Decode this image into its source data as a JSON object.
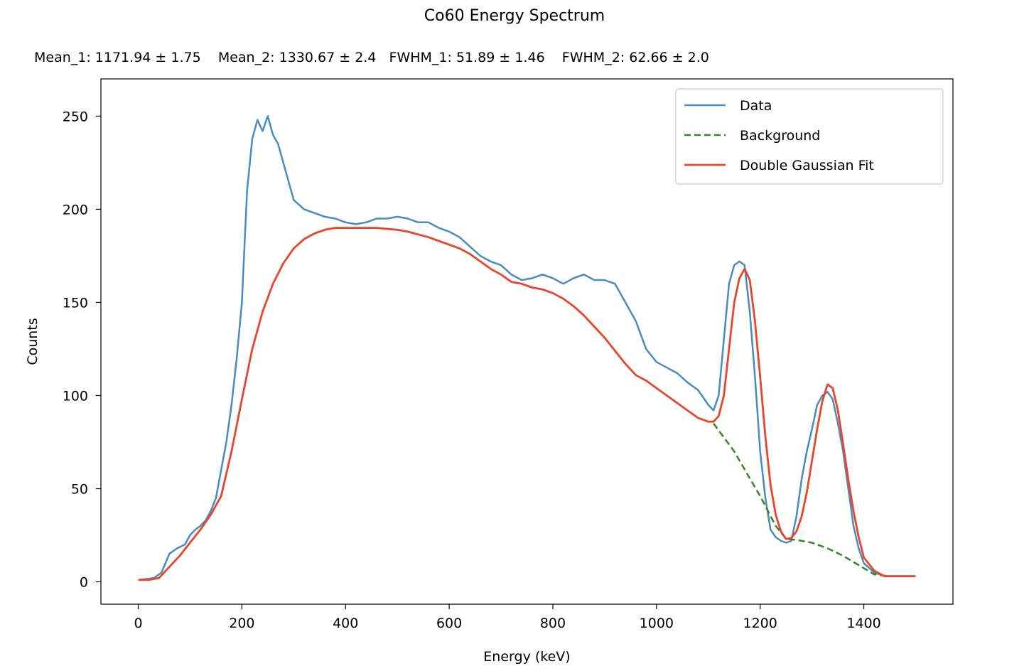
{
  "chart_data": {
    "type": "line",
    "title": "Co60 Energy Spectrum",
    "subtitle": "Mean_1: 1171.94 ± 1.75    Mean_2: 1330.67 ± 2.4   FWHM_1: 51.89 ± 1.46    FWHM_2: 62.66 ± 2.0",
    "fit_parameters": {
      "mean_1": 1171.94,
      "mean_1_err": 1.75,
      "mean_2": 1330.67,
      "mean_2_err": 2.4,
      "fwhm_1": 51.89,
      "fwhm_1_err": 1.46,
      "fwhm_2": 62.66,
      "fwhm_2_err": 2.0
    },
    "xlabel": "Energy (keV)",
    "ylabel": "Counts",
    "xlim": [
      -72,
      1572
    ],
    "ylim": [
      -12,
      270
    ],
    "xticks": [
      0,
      200,
      400,
      600,
      800,
      1000,
      1200,
      1400
    ],
    "yticks": [
      0,
      50,
      100,
      150,
      200,
      250
    ],
    "legend_position": "upper right",
    "colors": {
      "data": "#4a8bbf",
      "background": "#2e8b22",
      "fit": "#e8452c"
    },
    "series": [
      {
        "name": "Data",
        "style": "solid",
        "x": [
          0,
          30,
          45,
          60,
          75,
          90,
          100,
          110,
          120,
          130,
          140,
          150,
          160,
          170,
          180,
          190,
          200,
          205,
          210,
          220,
          230,
          240,
          250,
          260,
          270,
          280,
          290,
          300,
          320,
          340,
          360,
          380,
          400,
          420,
          440,
          460,
          480,
          500,
          520,
          540,
          560,
          580,
          600,
          620,
          640,
          660,
          680,
          700,
          720,
          740,
          760,
          780,
          800,
          820,
          840,
          860,
          880,
          900,
          920,
          940,
          960,
          980,
          1000,
          1020,
          1040,
          1060,
          1080,
          1100,
          1110,
          1120,
          1130,
          1140,
          1150,
          1160,
          1170,
          1180,
          1190,
          1200,
          1210,
          1220,
          1230,
          1240,
          1250,
          1260,
          1270,
          1280,
          1290,
          1300,
          1310,
          1320,
          1330,
          1340,
          1350,
          1360,
          1370,
          1380,
          1390,
          1400,
          1420,
          1440,
          1460,
          1480,
          1500
        ],
        "values": [
          1,
          2,
          5,
          15,
          18,
          20,
          25,
          28,
          30,
          33,
          38,
          45,
          60,
          75,
          95,
          120,
          150,
          180,
          210,
          238,
          248,
          242,
          250,
          240,
          235,
          225,
          215,
          205,
          200,
          198,
          196,
          195,
          193,
          192,
          193,
          195,
          195,
          196,
          195,
          193,
          193,
          190,
          188,
          185,
          180,
          175,
          172,
          170,
          165,
          162,
          163,
          165,
          163,
          160,
          163,
          165,
          162,
          162,
          160,
          150,
          140,
          125,
          118,
          115,
          112,
          107,
          103,
          95,
          92,
          100,
          130,
          160,
          170,
          172,
          170,
          145,
          110,
          70,
          45,
          28,
          24,
          22,
          21,
          22,
          35,
          55,
          70,
          82,
          95,
          100,
          102,
          98,
          85,
          70,
          50,
          30,
          18,
          10,
          5,
          3,
          3,
          3,
          3
        ]
      },
      {
        "name": "Background",
        "style": "dashed",
        "x": [
          1110,
          1150,
          1200,
          1230,
          1250,
          1270,
          1300,
          1330,
          1360,
          1390,
          1420,
          1450,
          1500
        ],
        "values": [
          85,
          70,
          46,
          30,
          23,
          22.5,
          21,
          18,
          14,
          9,
          4,
          3,
          3
        ]
      },
      {
        "name": "Double Gaussian Fit",
        "style": "solid",
        "x": [
          0,
          20,
          40,
          60,
          80,
          100,
          120,
          140,
          160,
          180,
          200,
          220,
          240,
          260,
          280,
          300,
          320,
          340,
          360,
          380,
          400,
          420,
          440,
          460,
          480,
          500,
          520,
          540,
          560,
          580,
          600,
          620,
          640,
          660,
          680,
          700,
          720,
          740,
          760,
          780,
          800,
          820,
          840,
          860,
          880,
          900,
          920,
          940,
          960,
          980,
          1000,
          1020,
          1040,
          1060,
          1080,
          1100,
          1110,
          1120,
          1130,
          1140,
          1150,
          1160,
          1170,
          1180,
          1190,
          1200,
          1210,
          1220,
          1230,
          1240,
          1250,
          1260,
          1270,
          1280,
          1290,
          1300,
          1310,
          1320,
          1330,
          1340,
          1350,
          1360,
          1370,
          1380,
          1390,
          1400,
          1420,
          1440,
          1460,
          1480,
          1500
        ],
        "values": [
          1,
          1,
          2,
          8,
          14,
          21,
          28,
          36,
          46,
          70,
          98,
          125,
          145,
          160,
          171,
          179,
          184,
          187,
          189,
          190,
          190,
          190,
          190,
          190,
          189.5,
          189,
          188,
          186.5,
          185,
          183,
          181,
          179,
          176,
          172,
          168,
          165,
          161,
          160,
          158,
          157,
          155,
          152,
          148,
          143,
          137,
          131,
          124,
          117,
          111,
          108,
          104,
          100,
          96,
          92,
          88,
          86,
          86,
          89,
          100,
          125,
          150,
          163,
          168,
          162,
          140,
          110,
          78,
          52,
          36,
          27,
          23,
          23.5,
          27,
          35,
          48,
          65,
          82,
          97,
          106,
          104,
          92,
          74,
          55,
          38,
          24,
          13,
          6,
          3,
          3,
          3,
          3
        ]
      }
    ]
  }
}
